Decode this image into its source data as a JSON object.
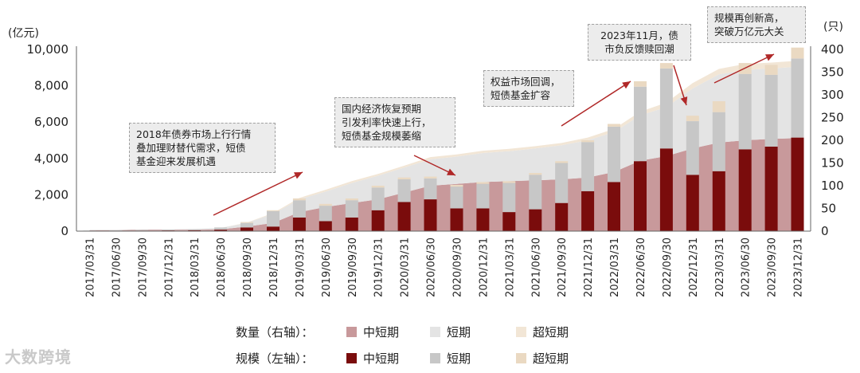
{
  "chart_data": {
    "type": "bar",
    "stacked": true,
    "categories": [
      "2017/03/31",
      "2017/06/30",
      "2017/09/30",
      "2017/12/31",
      "2018/03/31",
      "2018/06/30",
      "2018/09/30",
      "2018/12/31",
      "2019/03/31",
      "2019/06/30",
      "2019/09/30",
      "2019/12/31",
      "2020/03/31",
      "2020/06/30",
      "2020/09/30",
      "2020/12/31",
      "2021/03/31",
      "2021/06/30",
      "2021/09/30",
      "2021/12/31",
      "2022/03/31",
      "2022/06/30",
      "2022/09/30",
      "2022/12/31",
      "2023/03/31",
      "2023/06/30",
      "2023/09/30",
      "2023/12/31"
    ],
    "left_axis": {
      "label": "(亿元)",
      "ylim": [
        0,
        10000
      ],
      "ticks": [
        "0",
        "2,000",
        "4,000",
        "6,000",
        "8,000",
        "10,000"
      ],
      "tick_values": [
        0,
        2000,
        4000,
        6000,
        8000,
        10000
      ]
    },
    "right_axis": {
      "label": "(只)",
      "ylim": [
        0,
        400
      ],
      "ticks": [
        "0",
        "50",
        "100",
        "150",
        "200",
        "250",
        "300",
        "350",
        "400"
      ],
      "tick_values": [
        0,
        50,
        100,
        150,
        200,
        250,
        300,
        350,
        400
      ]
    },
    "scale_series": [
      {
        "name": "中短期",
        "axis": "left",
        "color": "#7a0c0c",
        "values": [
          10,
          20,
          30,
          40,
          50,
          80,
          200,
          250,
          750,
          550,
          750,
          1150,
          1600,
          1750,
          1250,
          1250,
          1050,
          1200,
          1550,
          2200,
          2700,
          3850,
          4550,
          3100,
          3300,
          4500,
          4650,
          5150
        ]
      },
      {
        "name": "短期",
        "axis": "left",
        "color": "#c7c7c7",
        "values": [
          20,
          20,
          30,
          40,
          40,
          120,
          250,
          850,
          950,
          850,
          950,
          1250,
          1250,
          1150,
          1200,
          1350,
          1600,
          1900,
          2200,
          2700,
          3050,
          4100,
          4400,
          2950,
          3250,
          4150,
          3950,
          4350
        ]
      },
      {
        "name": "超短期",
        "axis": "left",
        "color": "#ead9c2",
        "values": [
          0,
          0,
          0,
          0,
          0,
          0,
          50,
          50,
          100,
          100,
          100,
          100,
          100,
          100,
          100,
          100,
          100,
          100,
          100,
          100,
          150,
          300,
          300,
          300,
          600,
          600,
          550,
          600
        ]
      }
    ],
    "count_series": [
      {
        "name": "中短期",
        "axis": "right",
        "color": "#c8999b",
        "values": [
          2,
          2,
          3,
          3,
          3,
          4,
          10,
          18,
          42,
          53,
          62,
          70,
          85,
          100,
          104,
          108,
          110,
          112,
          114,
          118,
          130,
          155,
          165,
          182,
          195,
          200,
          203,
          205
        ]
      },
      {
        "name": "短期",
        "axis": "right",
        "color": "#e4e4e4",
        "values": [
          1,
          1,
          1,
          1,
          2,
          3,
          8,
          20,
          28,
          34,
          44,
          52,
          55,
          58,
          60,
          64,
          66,
          70,
          75,
          82,
          88,
          100,
          108,
          132,
          150,
          155,
          155,
          157
        ]
      },
      {
        "name": "超短期",
        "axis": "right",
        "color": "#f2e6d6",
        "values": [
          0,
          0,
          0,
          0,
          0,
          0,
          1,
          2,
          3,
          4,
          4,
          4,
          4,
          5,
          5,
          5,
          5,
          5,
          5,
          6,
          7,
          8,
          10,
          12,
          12,
          13,
          13,
          13
        ]
      }
    ],
    "annotations": [
      {
        "lines": [
          "2018年债券市场上行行情",
          "叠加理财替代需求，短债",
          "基金迎来发展机遇"
        ]
      },
      {
        "lines": [
          "国内经济恢复预期",
          "引发利率快速上行，",
          "短债基金规模萎缩"
        ]
      },
      {
        "lines": [
          "权益市场回调，",
          "短债基金扩容"
        ]
      },
      {
        "lines": [
          "2023年11月，债",
          "市负反馈赎回潮"
        ]
      },
      {
        "lines": [
          "规模再创新高，",
          "突破万亿元大关"
        ]
      }
    ],
    "legend": {
      "count_title": "数量（右轴）：",
      "scale_title": "规模（左轴）：",
      "count_items": [
        "中短期",
        "短期",
        "超短期"
      ],
      "scale_items": [
        "中短期",
        "短期",
        "超短期"
      ]
    }
  },
  "watermark": "大数跨境"
}
